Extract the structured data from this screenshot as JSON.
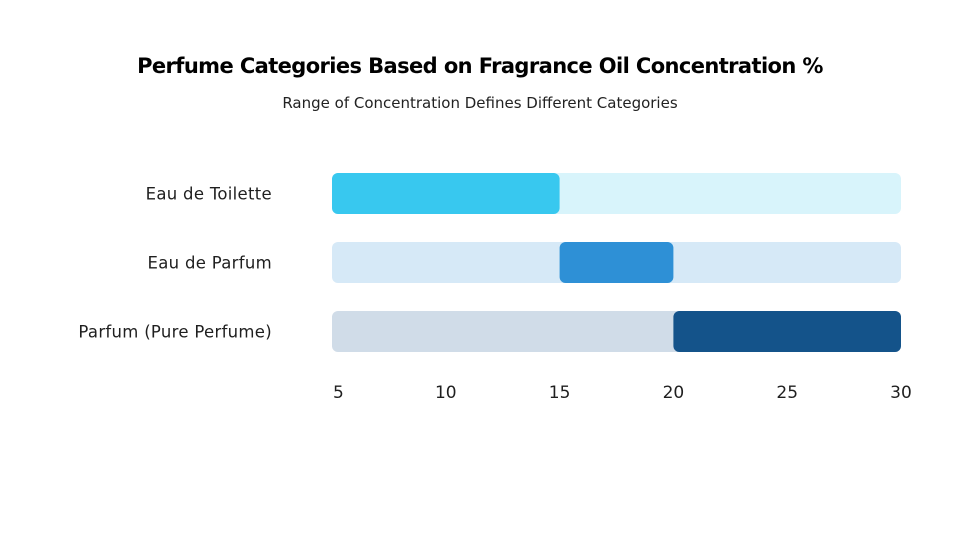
{
  "chart_data": {
    "type": "bar",
    "orientation": "horizontal",
    "title": "Perfume Categories Based on Fragrance Oil Concentration %",
    "subtitle": "Range of Concentration Defines Different Categories",
    "xlim": [
      5,
      30
    ],
    "xticks": [
      "5",
      "10",
      "15",
      "20",
      "25",
      "30"
    ],
    "xtick_values": [
      5,
      10,
      15,
      20,
      25,
      30
    ],
    "grid": false,
    "categories": [
      "Eau de Toilette",
      "Eau de Parfum",
      "Parfum (Pure Perfume)"
    ],
    "series": [
      {
        "ranges": [
          [
            5,
            15
          ],
          [
            15,
            20
          ],
          [
            20,
            30
          ]
        ],
        "colors": [
          "#38c8ef",
          "#2e90d6",
          "#14538a"
        ],
        "track_colors": [
          "#d8f4fb",
          "#d6e9f7",
          "#d0dce8"
        ]
      }
    ]
  }
}
